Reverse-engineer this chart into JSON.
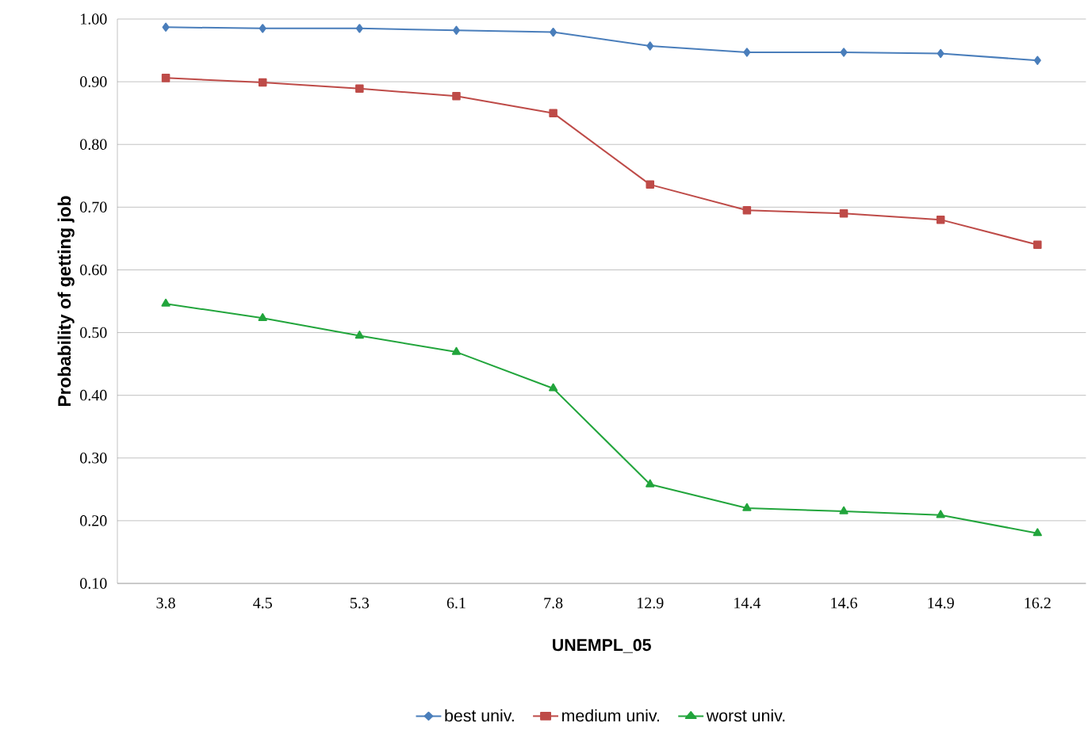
{
  "chart_data": {
    "type": "line",
    "xlabel": "UNEMPL_05",
    "ylabel": "Probability of getting job",
    "categories": [
      "3.8",
      "4.5",
      "5.3",
      "6.1",
      "7.8",
      "12.9",
      "14.4",
      "14.6",
      "14.9",
      "16.2"
    ],
    "series": [
      {
        "name": "best univ.",
        "color": "#4a7ebb",
        "marker": "diamond",
        "values": [
          0.987,
          0.985,
          0.985,
          0.982,
          0.979,
          0.957,
          0.947,
          0.947,
          0.945,
          0.934
        ]
      },
      {
        "name": "medium univ.",
        "color": "#be4b48",
        "marker": "square",
        "values": [
          0.906,
          0.899,
          0.889,
          0.877,
          0.85,
          0.736,
          0.695,
          0.69,
          0.68,
          0.64
        ]
      },
      {
        "name": "worst univ.",
        "color": "#22a53c",
        "marker": "triangle",
        "values": [
          0.546,
          0.523,
          0.495,
          0.469,
          0.411,
          0.258,
          0.22,
          0.215,
          0.209,
          0.18
        ]
      }
    ],
    "ylim": [
      0.1,
      1.0
    ],
    "yticks": [
      {
        "value": 0.1,
        "label": "0.10"
      },
      {
        "value": 0.2,
        "label": "0.20"
      },
      {
        "value": 0.3,
        "label": "0.30"
      },
      {
        "value": 0.4,
        "label": "0.40"
      },
      {
        "value": 0.5,
        "label": "0.50"
      },
      {
        "value": 0.6,
        "label": "0.60"
      },
      {
        "value": 0.7,
        "label": "0.70"
      },
      {
        "value": 0.8,
        "label": "0.80"
      },
      {
        "value": 0.9,
        "label": "0.90"
      },
      {
        "value": 1.0,
        "label": "1.00"
      }
    ],
    "grid": "y",
    "legend": "bottom",
    "line_style": "solid"
  }
}
